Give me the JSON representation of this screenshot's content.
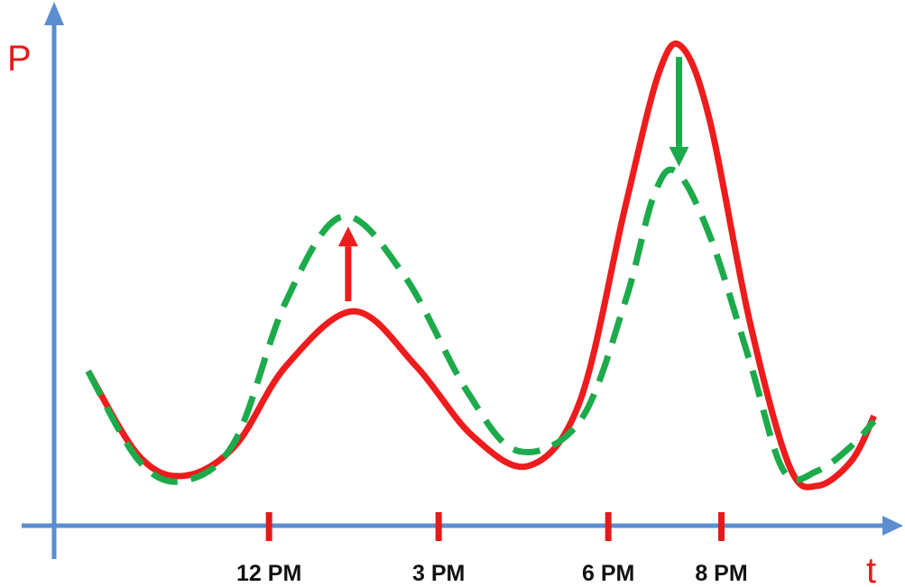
{
  "chart_data": {
    "type": "line",
    "ylabel": "P",
    "xlabel": "t",
    "grid": false,
    "legend": "none",
    "x_ticks": [
      {
        "label": "12 PM",
        "x": 12
      },
      {
        "label": "3 PM",
        "x": 15
      },
      {
        "label": "6 PM",
        "x": 18
      },
      {
        "label": "8 PM",
        "x": 20
      }
    ],
    "xlim": [
      8.2,
      22.8
    ],
    "ylim": [
      0,
      100
    ],
    "series": [
      {
        "style": "solid",
        "color": "#ee1c1c",
        "points": [
          [
            8.8,
            31
          ],
          [
            9.7,
            14
          ],
          [
            10.5,
            10
          ],
          [
            11.4,
            16
          ],
          [
            12.3,
            32
          ],
          [
            13.5,
            43
          ],
          [
            14.6,
            32
          ],
          [
            15.6,
            18
          ],
          [
            16.6,
            12
          ],
          [
            17.5,
            25
          ],
          [
            18.3,
            64
          ],
          [
            18.9,
            91
          ],
          [
            19.3,
            96
          ],
          [
            19.8,
            81
          ],
          [
            20.5,
            41
          ],
          [
            21.2,
            12
          ],
          [
            21.7,
            8
          ],
          [
            22.3,
            13
          ],
          [
            22.7,
            22
          ]
        ]
      },
      {
        "style": "dashed",
        "color": "#1daa4b",
        "points": [
          [
            8.8,
            31
          ],
          [
            9.7,
            13
          ],
          [
            10.5,
            9
          ],
          [
            11.4,
            17
          ],
          [
            12.3,
            45
          ],
          [
            13.3,
            62
          ],
          [
            14.4,
            50
          ],
          [
            15.5,
            27
          ],
          [
            16.4,
            15
          ],
          [
            17.5,
            21
          ],
          [
            18.3,
            45
          ],
          [
            18.8,
            66
          ],
          [
            19.2,
            71
          ],
          [
            19.8,
            58
          ],
          [
            20.5,
            33
          ],
          [
            21.1,
            11
          ],
          [
            21.7,
            11
          ],
          [
            22.3,
            16
          ],
          [
            22.7,
            21
          ]
        ]
      }
    ],
    "annotations": [
      {
        "type": "arrow",
        "direction": "up",
        "color": "#ee1c1c",
        "x": 13.4,
        "from": 45,
        "to": 60
      },
      {
        "type": "arrow",
        "direction": "down",
        "color": "#1daa4b",
        "x": 19.25,
        "from": 94,
        "to": 72
      }
    ],
    "colors": {
      "axis": "#5b8ed0",
      "axis_letter": "#e41a1a",
      "tick_mark": "#e41a1a",
      "tick_label": "#111111"
    }
  }
}
